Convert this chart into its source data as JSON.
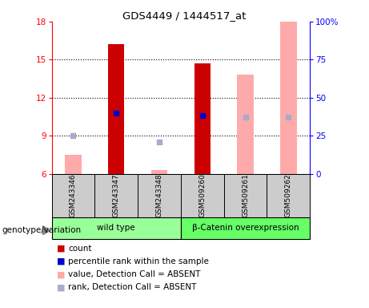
{
  "title": "GDS4449 / 1444517_at",
  "samples": [
    "GSM243346",
    "GSM243347",
    "GSM243348",
    "GSM509260",
    "GSM509261",
    "GSM509262"
  ],
  "ylim_left": [
    6,
    18
  ],
  "ylim_right": [
    0,
    100
  ],
  "yticks_left": [
    6,
    9,
    12,
    15,
    18
  ],
  "yticks_right": [
    0,
    25,
    50,
    75,
    100
  ],
  "ytick_labels_right": [
    "0",
    "25",
    "50",
    "75",
    "100%"
  ],
  "red_bars": {
    "indices": [
      1,
      3
    ],
    "bottoms": [
      6,
      6
    ],
    "tops": [
      16.2,
      14.7
    ]
  },
  "pink_bars": {
    "indices": [
      0,
      2,
      4,
      5
    ],
    "bottoms": [
      6,
      6,
      6,
      6
    ],
    "tops": [
      7.5,
      6.3,
      13.8,
      18.0
    ]
  },
  "blue_squares": {
    "indices": [
      1,
      3
    ],
    "y_values": [
      10.8,
      10.6
    ]
  },
  "light_blue_squares": {
    "indices": [
      0,
      2,
      4,
      5
    ],
    "y_values": [
      9.05,
      8.55,
      10.5,
      10.5
    ]
  },
  "colors": {
    "dark_red": "#cc0000",
    "pink": "#ffaaaa",
    "blue": "#0000cc",
    "light_blue": "#aaaacc",
    "wild_type_bg": "#99ff99",
    "beta_cat_bg": "#66ff66",
    "sample_bg": "#cccccc"
  },
  "legend_items": [
    {
      "color": "#cc0000",
      "label": "count"
    },
    {
      "color": "#0000cc",
      "label": "percentile rank within the sample"
    },
    {
      "color": "#ffaaaa",
      "label": "value, Detection Call = ABSENT"
    },
    {
      "color": "#aaaacc",
      "label": "rank, Detection Call = ABSENT"
    }
  ],
  "genotype_label": "genotype/variation",
  "group_labels": [
    "wild type",
    "β-Catenin overexpression"
  ]
}
